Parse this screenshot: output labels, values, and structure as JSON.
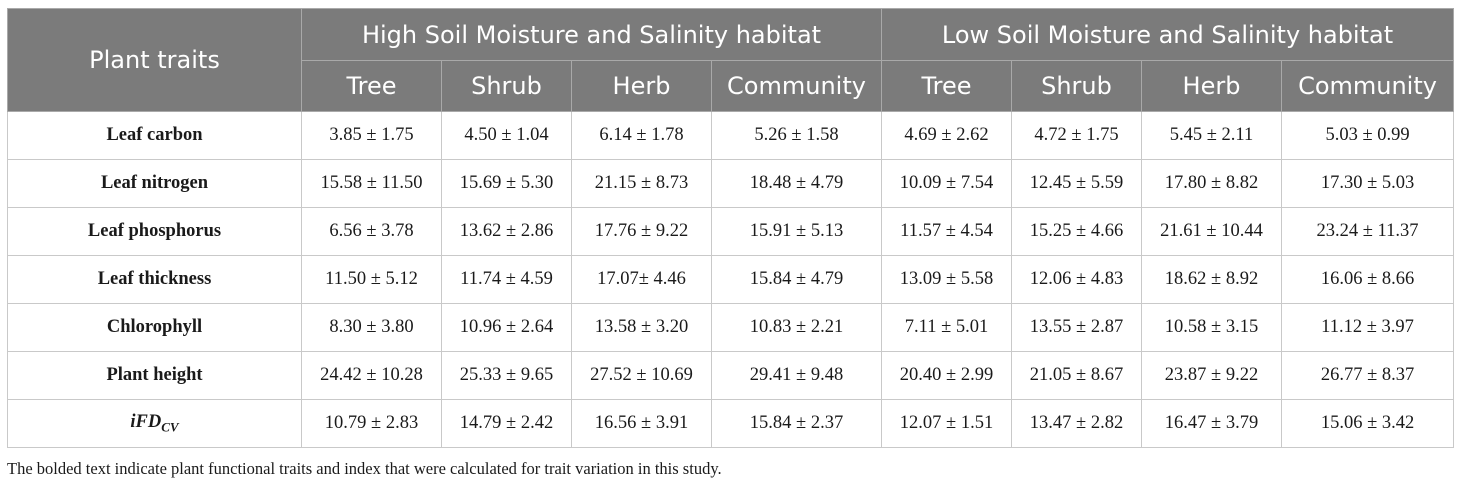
{
  "table": {
    "corner_header": "Plant traits",
    "group_headers": [
      "High Soil Moisture and Salinity habitat",
      "Low Soil Moisture and Salinity habitat"
    ],
    "sub_headers": [
      "Tree",
      "Shrub",
      "Herb",
      "Community",
      "Tree",
      "Shrub",
      "Herb",
      "Community"
    ],
    "rows": [
      {
        "trait": "Leaf carbon",
        "values": [
          "3.85 ± 1.75",
          "4.50 ± 1.04",
          "6.14 ± 1.78",
          "5.26 ± 1.58",
          "4.69 ± 2.62",
          "4.72 ± 1.75",
          "5.45 ± 2.11",
          "5.03 ± 0.99"
        ]
      },
      {
        "trait": "Leaf nitrogen",
        "values": [
          "15.58 ± 11.50",
          "15.69 ± 5.30",
          "21.15 ± 8.73",
          "18.48 ± 4.79",
          "10.09 ± 7.54",
          "12.45 ± 5.59",
          "17.80 ± 8.82",
          "17.30 ± 5.03"
        ]
      },
      {
        "trait": "Leaf phosphorus",
        "values": [
          "6.56 ± 3.78",
          "13.62 ± 2.86",
          "17.76 ± 9.22",
          "15.91 ± 5.13",
          "11.57 ± 4.54",
          "15.25 ± 4.66",
          "21.61 ± 10.44",
          "23.24 ± 11.37"
        ]
      },
      {
        "trait": "Leaf thickness",
        "values": [
          "11.50 ± 5.12",
          "11.74 ± 4.59",
          "17.07± 4.46",
          "15.84 ± 4.79",
          "13.09 ± 5.58",
          "12.06 ± 4.83",
          "18.62 ± 8.92",
          "16.06 ± 8.66"
        ]
      },
      {
        "trait": "Chlorophyll",
        "values": [
          "8.30 ± 3.80",
          "10.96 ± 2.64",
          "13.58 ± 3.20",
          "10.83 ± 2.21",
          "7.11 ± 5.01",
          "13.55 ± 2.87",
          "10.58 ± 3.15",
          "11.12 ± 3.97"
        ]
      },
      {
        "trait": "Plant height",
        "values": [
          "24.42 ± 10.28",
          "25.33 ± 9.65",
          "27.52 ± 10.69",
          "29.41 ± 9.48",
          "20.40 ± 2.99",
          "21.05 ± 8.67",
          "23.87 ± 9.22",
          "26.77 ± 8.37"
        ]
      }
    ],
    "last_row": {
      "trait_main": "iFD",
      "trait_sub": "CV",
      "values": [
        "10.79 ± 2.83",
        "14.79 ± 2.42",
        "16.56 ± 3.91",
        "15.84 ± 2.37",
        "12.07 ± 1.51",
        "13.47 ± 2.82",
        "16.47 ± 3.79",
        "15.06 ± 3.42"
      ]
    }
  },
  "footnote": "The bolded text indicate plant functional traits and index that were calculated for trait variation in this study.",
  "colors": {
    "header_bg": "#7b7b7b",
    "header_text": "#ffffff",
    "grid": "#c9c9c9",
    "body_text": "#1a1a1a"
  }
}
